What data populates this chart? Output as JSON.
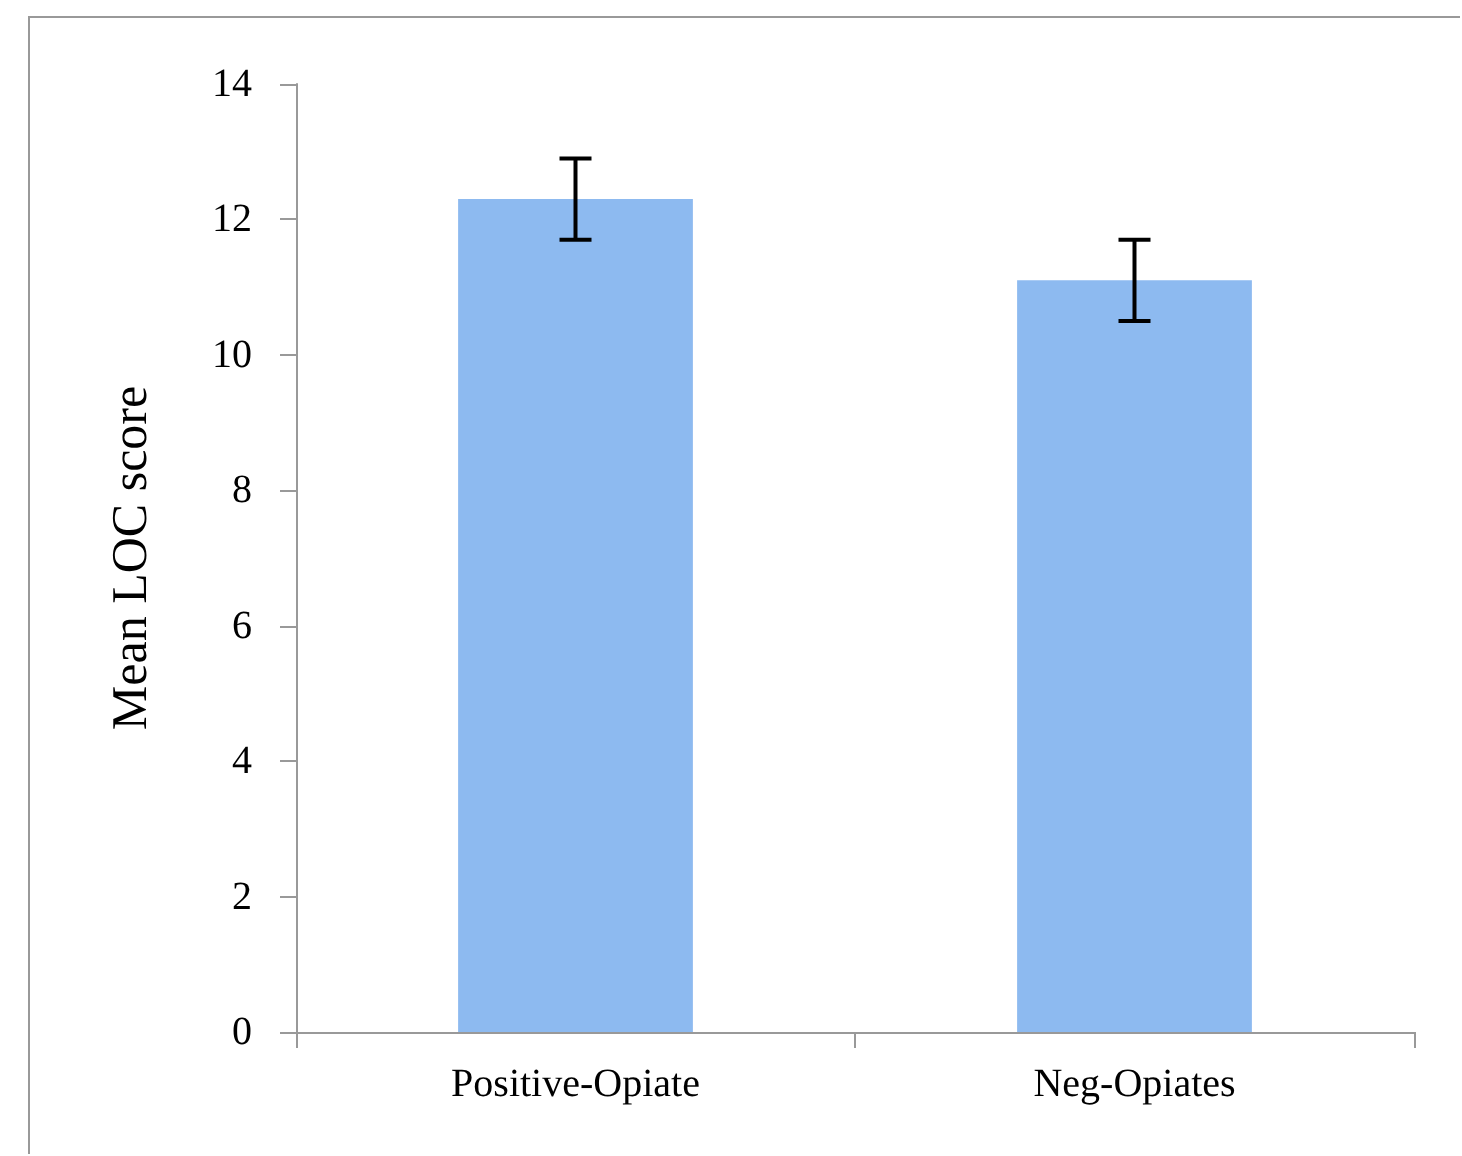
{
  "chart_data": {
    "type": "bar",
    "ylabel": "Mean LOC score",
    "categories": [
      "Positive-Opiate",
      "Neg-Opiates"
    ],
    "values": [
      12.3,
      11.1
    ],
    "errors": [
      0.6,
      0.6
    ],
    "color": "#8dbaf0",
    "ylim": [
      0,
      14
    ],
    "yticks": [
      0,
      2,
      4,
      6,
      8,
      10,
      12,
      14
    ],
    "grid": false
  }
}
